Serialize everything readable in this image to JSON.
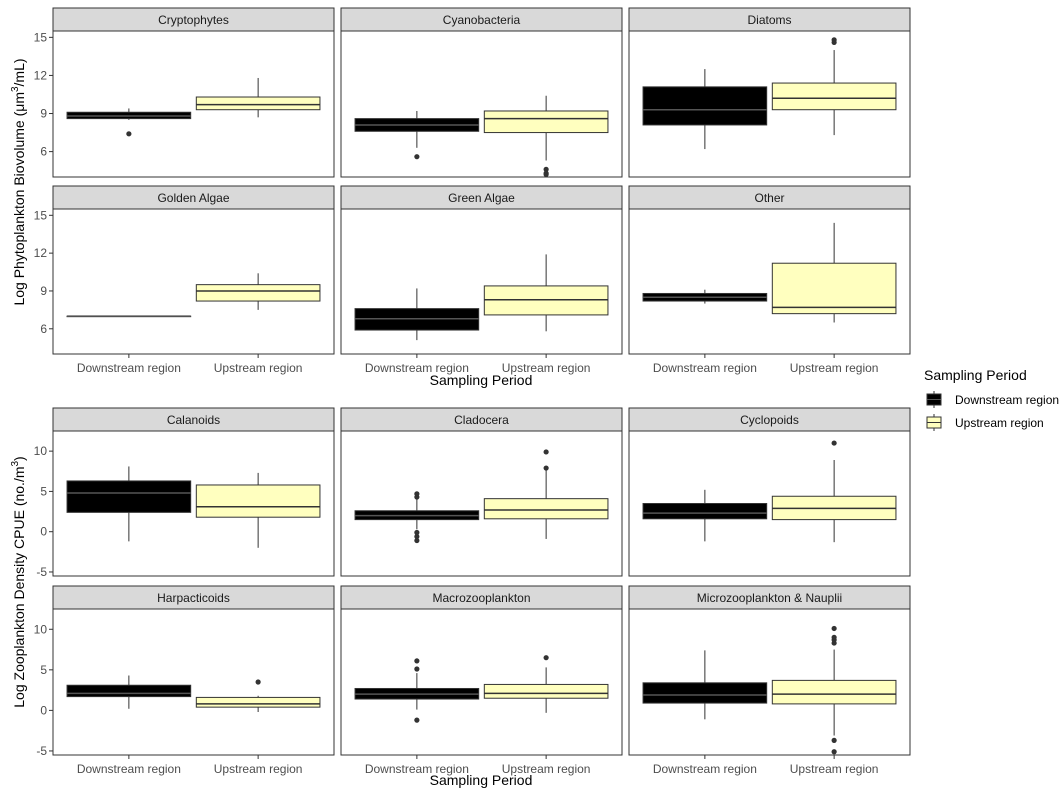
{
  "chart_data": [
    {
      "type": "boxplot",
      "ylabel": "Log Phytoplankton Biovolume (μm³/mL)",
      "ylabel_main": "Log Phytoplankton Biovolume (μm",
      "ylabel_sup": "3",
      "ylabel_tail": "/mL)",
      "xlabel": "Sampling Period",
      "categories": [
        "Downstream region",
        "Upstream region"
      ],
      "ylim": [
        4.0,
        15.5
      ],
      "yticks": [
        6,
        9,
        12,
        15
      ],
      "facets": [
        {
          "name": "Cryptophytes",
          "boxes": [
            {
              "min": 8.5,
              "q1": 8.6,
              "median": 8.8,
              "q3": 9.1,
              "max": 9.4,
              "outliers": [
                7.4
              ]
            },
            {
              "min": 8.7,
              "q1": 9.3,
              "median": 9.7,
              "q3": 10.3,
              "max": 11.8,
              "outliers": []
            }
          ]
        },
        {
          "name": "Cyanobacteria",
          "boxes": [
            {
              "min": 6.3,
              "q1": 7.6,
              "median": 8.1,
              "q3": 8.6,
              "max": 9.2,
              "outliers": [
                5.6
              ]
            },
            {
              "min": 5.3,
              "q1": 7.5,
              "median": 8.6,
              "q3": 9.2,
              "max": 10.4,
              "outliers": [
                4.6,
                4.3,
                4.2
              ]
            }
          ]
        },
        {
          "name": "Diatoms",
          "boxes": [
            {
              "min": 6.2,
              "q1": 8.1,
              "median": 9.3,
              "q3": 11.1,
              "max": 12.5,
              "outliers": []
            },
            {
              "min": 7.3,
              "q1": 9.3,
              "median": 10.2,
              "q3": 11.4,
              "max": 14.0,
              "outliers": [
                14.6,
                14.8
              ]
            }
          ]
        },
        {
          "name": "Golden Algae",
          "boxes": [
            {
              "min": 7.0,
              "q1": 7.0,
              "median": 7.0,
              "q3": 7.0,
              "max": 7.0,
              "outliers": []
            },
            {
              "min": 7.5,
              "q1": 8.2,
              "median": 9.0,
              "q3": 9.5,
              "max": 10.4,
              "outliers": []
            }
          ]
        },
        {
          "name": "Green Algae",
          "boxes": [
            {
              "min": 5.1,
              "q1": 5.9,
              "median": 6.8,
              "q3": 7.6,
              "max": 9.2,
              "outliers": []
            },
            {
              "min": 5.8,
              "q1": 7.1,
              "median": 8.3,
              "q3": 9.4,
              "max": 11.9,
              "outliers": []
            }
          ]
        },
        {
          "name": "Other",
          "boxes": [
            {
              "min": 8.0,
              "q1": 8.2,
              "median": 8.5,
              "q3": 8.8,
              "max": 9.1,
              "outliers": []
            },
            {
              "min": 6.5,
              "q1": 7.2,
              "median": 7.7,
              "q3": 11.2,
              "max": 14.4,
              "outliers": []
            }
          ]
        }
      ]
    },
    {
      "type": "boxplot",
      "ylabel": "Log Zooplankton Density CPUE (no./m³)",
      "ylabel_main": "Log Zooplankton Density CPUE  (no./m",
      "ylabel_sup": "3",
      "ylabel_tail": ")",
      "xlabel": "Sampling Period",
      "categories": [
        "Downstream region",
        "Upstream region"
      ],
      "ylim": [
        -5.5,
        12.5
      ],
      "yticks": [
        -5,
        0,
        5,
        10
      ],
      "facets": [
        {
          "name": "Calanoids",
          "boxes": [
            {
              "min": -1.2,
              "q1": 2.4,
              "median": 4.8,
              "q3": 6.3,
              "max": 8.1,
              "outliers": []
            },
            {
              "min": -2.0,
              "q1": 1.8,
              "median": 3.1,
              "q3": 5.8,
              "max": 7.3,
              "outliers": []
            }
          ]
        },
        {
          "name": "Cladocera",
          "boxes": [
            {
              "min": 0.3,
              "q1": 1.5,
              "median": 2.0,
              "q3": 2.6,
              "max": 4.0,
              "outliers": [
                4.3,
                4.7,
                -0.1,
                -0.6,
                -1.1
              ]
            },
            {
              "min": -0.9,
              "q1": 1.6,
              "median": 2.7,
              "q3": 4.1,
              "max": 7.8,
              "outliers": [
                7.9,
                9.9
              ]
            }
          ]
        },
        {
          "name": "Cyclopoids",
          "boxes": [
            {
              "min": -1.2,
              "q1": 1.6,
              "median": 2.3,
              "q3": 3.5,
              "max": 5.2,
              "outliers": []
            },
            {
              "min": -1.3,
              "q1": 1.5,
              "median": 2.9,
              "q3": 4.4,
              "max": 8.9,
              "outliers": [
                11.0
              ]
            }
          ]
        },
        {
          "name": "Harpacticoids",
          "boxes": [
            {
              "min": 0.2,
              "q1": 1.7,
              "median": 2.1,
              "q3": 3.1,
              "max": 4.3,
              "outliers": []
            },
            {
              "min": -0.2,
              "q1": 0.4,
              "median": 0.8,
              "q3": 1.6,
              "max": 1.8,
              "outliers": [
                3.5
              ]
            }
          ]
        },
        {
          "name": "Macrozooplankton",
          "boxes": [
            {
              "min": 0.1,
              "q1": 1.4,
              "median": 2.0,
              "q3": 2.7,
              "max": 4.6,
              "outliers": [
                5.1,
                6.1,
                -1.2
              ]
            },
            {
              "min": -0.3,
              "q1": 1.5,
              "median": 2.1,
              "q3": 3.2,
              "max": 5.3,
              "outliers": [
                6.5
              ]
            }
          ]
        },
        {
          "name": "Microzooplankton & Nauplii",
          "boxes": [
            {
              "min": -1.1,
              "q1": 0.9,
              "median": 1.9,
              "q3": 3.4,
              "max": 7.4,
              "outliers": []
            },
            {
              "min": -3.1,
              "q1": 0.8,
              "median": 2.0,
              "q3": 3.7,
              "max": 7.5,
              "outliers": [
                8.3,
                8.7,
                9.0,
                10.1,
                -3.7,
                -5.1
              ]
            }
          ]
        }
      ]
    }
  ],
  "legend": {
    "title": "Sampling Period",
    "items": [
      {
        "label": "Downstream region",
        "color": "#000000"
      },
      {
        "label": "Upstream region",
        "color": "#FFFFBF"
      }
    ]
  },
  "colors": {
    "downstream_fill": "#000000",
    "upstream_fill": "#FFFFBF",
    "downstream_line": "#333333",
    "upstream_line": "#333333",
    "strip_fill": "#D9D9D9",
    "panel_border": "#333333",
    "outlier": "#333333"
  }
}
